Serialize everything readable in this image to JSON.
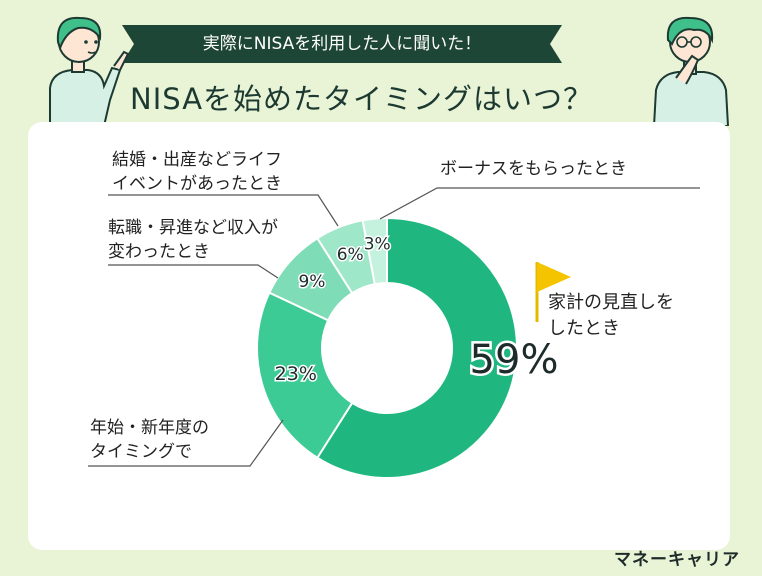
{
  "banner": {
    "text": "実際にNISAを利用した人に聞いた！"
  },
  "title": "NISAを始めたタイミングはいつ？",
  "brand": "マネーキャリア",
  "chart_data": {
    "type": "donut",
    "title": "NISAを始めたタイミングはいつ？",
    "series": [
      {
        "label_lines": [
          "家計の見直しを",
          "したとき"
        ],
        "value": 59,
        "display": "59%",
        "color": "#1fb77f"
      },
      {
        "label_lines": [
          "年始・新年度の",
          "タイミングで"
        ],
        "value": 23,
        "display": "23%",
        "color": "#3dcb95"
      },
      {
        "label_lines": [
          "転職・昇進など収入が",
          "変わったとき"
        ],
        "value": 9,
        "display": "9%",
        "color": "#7edcb6"
      },
      {
        "label_lines": [
          "結婚・出産などライフ",
          "イベントがあったとき"
        ],
        "value": 6,
        "display": "6%",
        "color": "#9ee7c8"
      },
      {
        "label_lines": [
          "ボーナスをもらったとき"
        ],
        "value": 3,
        "display": "3%",
        "color": "#c4f2de"
      }
    ]
  },
  "icons": {
    "flag": "flag-icon"
  }
}
